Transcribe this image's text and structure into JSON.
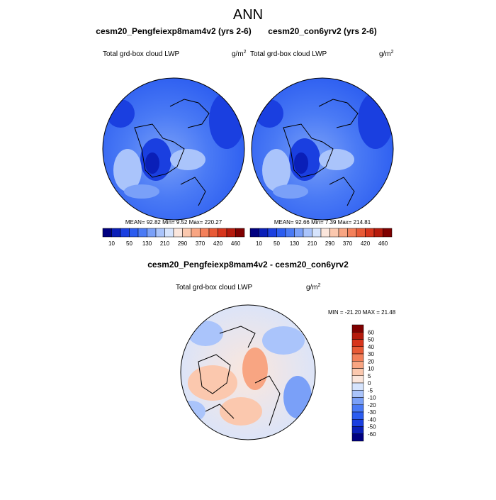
{
  "title": "ANN",
  "panels": [
    {
      "title": "cesm20_Pengfeiexp8mam4v2 (yrs 2-6)",
      "variable": "Total grd-box cloud LWP",
      "units": "g/m",
      "units_sup": "2",
      "stats": "MEAN=  92.82  Min=   9.52  Max= 220.27"
    },
    {
      "title": "cesm20_con6yrv2 (yrs 2-6)",
      "variable": "Total grd-box cloud LWP",
      "units": "g/m",
      "units_sup": "2",
      "stats": "MEAN=  92.66  Min=   7.39  Max= 214.81"
    }
  ],
  "colorbar": {
    "labels": [
      10,
      50,
      130,
      210,
      290,
      370,
      420,
      460
    ],
    "colors": [
      "#000080",
      "#0a1fb8",
      "#1a3fe0",
      "#2b5cf0",
      "#4a7af5",
      "#7aa0f8",
      "#aac4fb",
      "#d6e4fd",
      "#fbe6dc",
      "#fbc8ae",
      "#f8a582",
      "#f3805a",
      "#e85a36",
      "#d7351c",
      "#b51a0c",
      "#7f0000"
    ]
  },
  "diff": {
    "title": "cesm20_Pengfeiexp8mam4v2 - cesm20_con6yrv2",
    "variable": "Total grd-box cloud LWP",
    "units": "g/m",
    "units_sup": "2",
    "stats": "MIN = -21.20 MAX =  21.48",
    "colorbar": {
      "labels": [
        60,
        50,
        40,
        30,
        20,
        10,
        5,
        0,
        -5,
        -10,
        -20,
        -30,
        -40,
        -50,
        -60
      ],
      "colors": [
        "#7f0000",
        "#b51a0c",
        "#d7351c",
        "#e85a36",
        "#f3805a",
        "#f8a582",
        "#fbc8ae",
        "#fbe6dc",
        "#d6e4fd",
        "#aac4fb",
        "#7aa0f8",
        "#4a7af5",
        "#2b5cf0",
        "#1a3fe0",
        "#0a1fb8",
        "#000080"
      ]
    }
  }
}
